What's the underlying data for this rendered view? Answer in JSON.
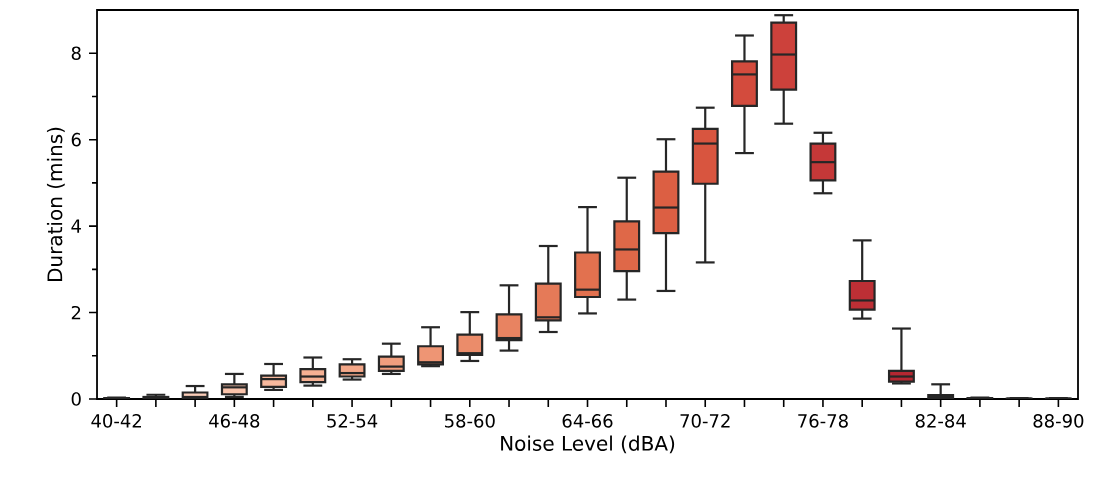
{
  "chart_data": {
    "type": "box",
    "xlabel": "Noise Level (dBA)",
    "ylabel": "Duration (mins)",
    "categories": [
      "40-42",
      null,
      null,
      "46-48",
      null,
      null,
      "52-54",
      null,
      null,
      "58-60",
      null,
      null,
      "64-66",
      null,
      null,
      "70-72",
      null,
      null,
      "76-78",
      null,
      null,
      "82-84",
      null,
      null,
      "88-90"
    ],
    "boxes": [
      {
        "low": 0,
        "q1": 0,
        "median": 0.01,
        "q3": 0.02,
        "high": 0.03
      },
      {
        "low": 0,
        "q1": 0.01,
        "median": 0.03,
        "q3": 0.05,
        "high": 0.1
      },
      {
        "low": 0,
        "q1": 0.02,
        "median": 0.05,
        "q3": 0.15,
        "high": 0.3
      },
      {
        "low": 0.05,
        "q1": 0.11,
        "median": 0.27,
        "q3": 0.34,
        "high": 0.58
      },
      {
        "low": 0.21,
        "q1": 0.28,
        "median": 0.46,
        "q3": 0.54,
        "high": 0.81
      },
      {
        "low": 0.31,
        "q1": 0.39,
        "median": 0.52,
        "q3": 0.69,
        "high": 0.96
      },
      {
        "low": 0.45,
        "q1": 0.52,
        "median": 0.6,
        "q3": 0.8,
        "high": 0.92
      },
      {
        "low": 0.58,
        "q1": 0.65,
        "median": 0.75,
        "q3": 0.98,
        "high": 1.28
      },
      {
        "low": 0.76,
        "q1": 0.8,
        "median": 0.85,
        "q3": 1.22,
        "high": 1.66
      },
      {
        "low": 0.88,
        "q1": 1.02,
        "median": 1.06,
        "q3": 1.49,
        "high": 2.01
      },
      {
        "low": 1.12,
        "q1": 1.36,
        "median": 1.41,
        "q3": 1.96,
        "high": 2.63
      },
      {
        "low": 1.55,
        "q1": 1.82,
        "median": 1.89,
        "q3": 2.67,
        "high": 3.54
      },
      {
        "low": 1.98,
        "q1": 2.36,
        "median": 2.53,
        "q3": 3.39,
        "high": 4.44
      },
      {
        "low": 2.3,
        "q1": 2.96,
        "median": 3.46,
        "q3": 4.11,
        "high": 5.12
      },
      {
        "low": 2.5,
        "q1": 3.84,
        "median": 4.43,
        "q3": 5.26,
        "high": 6.01
      },
      {
        "low": 3.16,
        "q1": 4.98,
        "median": 5.91,
        "q3": 6.25,
        "high": 6.74
      },
      {
        "low": 5.69,
        "q1": 6.78,
        "median": 7.51,
        "q3": 7.81,
        "high": 8.41
      },
      {
        "low": 6.37,
        "q1": 7.16,
        "median": 7.97,
        "q3": 8.71,
        "high": 8.88
      },
      {
        "low": 4.76,
        "q1": 5.06,
        "median": 5.48,
        "q3": 5.91,
        "high": 6.16
      },
      {
        "low": 1.86,
        "q1": 2.07,
        "median": 2.28,
        "q3": 2.73,
        "high": 3.67
      },
      {
        "low": 0.36,
        "q1": 0.4,
        "median": 0.52,
        "q3": 0.65,
        "high": 1.63
      },
      {
        "low": 0,
        "q1": 0.02,
        "median": 0.05,
        "q3": 0.09,
        "high": 0.34
      },
      {
        "low": 0,
        "q1": 0,
        "median": 0.01,
        "q3": 0.02,
        "high": 0.03
      },
      {
        "low": 0,
        "q1": 0,
        "median": 0.01,
        "q3": 0.01,
        "high": 0.02
      },
      {
        "low": 0,
        "q1": 0,
        "median": 0.01,
        "q3": 0.01,
        "high": 0.02
      }
    ],
    "colors": [
      "#fde3d6",
      "#fcd8c6",
      "#fbcdb8",
      "#f9c3ab",
      "#f7b99e",
      "#f5b093",
      "#f3a788",
      "#f09e7e",
      "#ee9574",
      "#eb8c6a",
      "#e88361",
      "#e57a58",
      "#e2714f",
      "#df6848",
      "#dc5f43",
      "#d8553f",
      "#d34b3d",
      "#cc413b",
      "#c53838",
      "#bd2f35",
      "#b52731",
      "#ad1f2d",
      "#a5172a",
      "#9d1026",
      "#950923"
    ],
    "ylim": [
      0,
      9
    ],
    "yticks": [
      0,
      {
        "value": 1,
        "label": null
      },
      2,
      {
        "value": 3,
        "label": null
      },
      4,
      {
        "value": 5,
        "label": null
      },
      6,
      {
        "value": 7,
        "label": null
      },
      8
    ]
  }
}
